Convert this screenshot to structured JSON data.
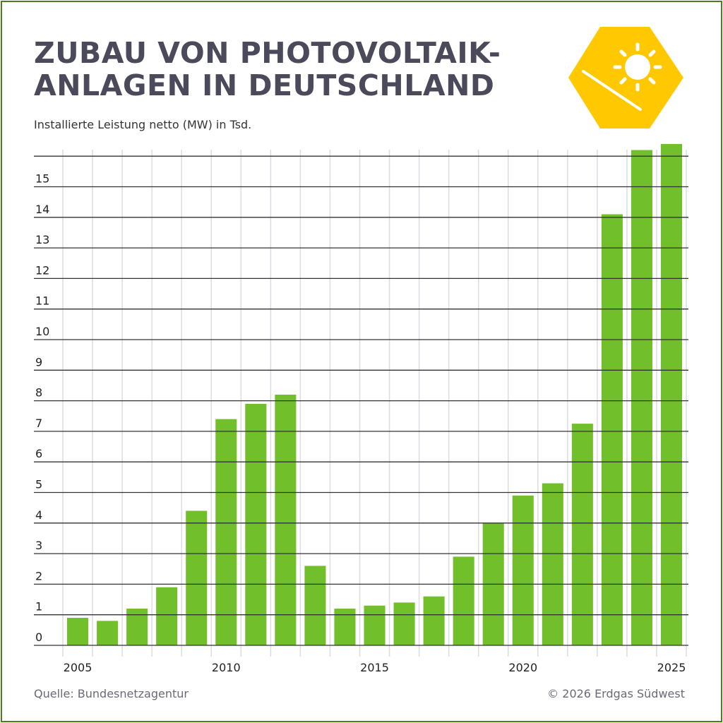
{
  "title_line1": "ZUBAU VON PHOTOVOLTAIK-",
  "title_line2": "ANLAGEN IN DEUTSCHLAND",
  "logo_icon": "sun-solar-panel-hexagon-icon",
  "colors": {
    "bar": "#72bf2c",
    "logo": "#ffc800",
    "frame": "#4e7d22",
    "title": "#4a4a5a"
  },
  "footer": {
    "source": "Quelle: Bundesnetzagentur",
    "copyright": "© 2026 Erdgas Südwest"
  },
  "chart_data": {
    "type": "bar",
    "title": "ZUBAU VON PHOTOVOLTAIK-ANLAGEN IN DEUTSCHLAND",
    "subtitle": "Installierte Leistung netto (MW) in Tsd.",
    "categories": [
      "2005",
      "2006",
      "2007",
      "2008",
      "2009",
      "2010",
      "2011",
      "2012",
      "2013",
      "2014",
      "2015",
      "2016",
      "2017",
      "2018",
      "2019",
      "2020",
      "2021",
      "2022",
      "2023",
      "2024",
      "2025"
    ],
    "values": [
      0.9,
      0.8,
      1.2,
      1.9,
      4.4,
      7.4,
      7.9,
      8.2,
      2.6,
      1.2,
      1.3,
      1.4,
      1.6,
      2.9,
      4.0,
      4.9,
      5.3,
      7.25,
      14.1,
      16.2,
      16.4
    ],
    "x_tick_labels": [
      "2005",
      "2010",
      "2015",
      "2020",
      "2025"
    ],
    "y_tick_labels": [
      "0",
      "1",
      "2",
      "3",
      "4",
      "5",
      "6",
      "7",
      "8",
      "9",
      "10",
      "11",
      "12",
      "13",
      "14",
      "15"
    ],
    "ylim": [
      0,
      16
    ],
    "grid": true
  }
}
